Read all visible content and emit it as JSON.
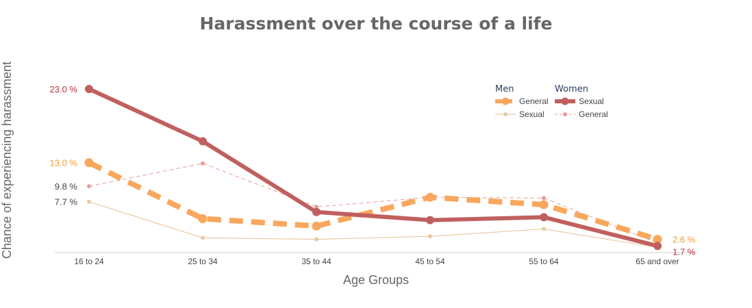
{
  "chart_data": {
    "type": "line",
    "title": "Harassment over the course of a life",
    "xlabel": "Age Groups",
    "ylabel": "Chance of experiencing harassment",
    "categories": [
      "16 to 24",
      "25 to 34",
      "35 to 44",
      "45 to 54",
      "55 to 64",
      "65 and over"
    ],
    "ylim": [
      0.8,
      25.0
    ],
    "grid": false,
    "legend_position": "top-right",
    "legend_groups": [
      "Men",
      "Women"
    ],
    "series": [
      {
        "name": "General",
        "group": "Men",
        "color": "#f9a75d",
        "style": "dashed-thick",
        "values": [
          13.0,
          5.4,
          4.4,
          8.3,
          7.3,
          2.6
        ]
      },
      {
        "name": "Sexual",
        "group": "Men",
        "color": "#e8c9a2",
        "style": "solid-thin",
        "values": [
          7.7,
          2.8,
          2.6,
          3.0,
          4.0,
          1.5
        ]
      },
      {
        "name": "Sexual",
        "group": "Women",
        "color": "#c0605e",
        "style": "solid-thick",
        "values": [
          23.0,
          15.9,
          6.3,
          5.2,
          5.6,
          1.7
        ]
      },
      {
        "name": "General",
        "group": "Women",
        "color": "#ec9a9a",
        "style": "dashed-thin",
        "values": [
          9.8,
          12.9,
          7.0,
          8.3,
          8.2,
          2.1
        ]
      }
    ],
    "annotations": [
      {
        "text": "23.0 %",
        "series": 2,
        "side": "left",
        "color": "#b5343c"
      },
      {
        "text": "13.0 %",
        "series": 0,
        "side": "left",
        "color": "#f39a37"
      },
      {
        "text": "9.8 %",
        "series": 3,
        "side": "left",
        "color": "#444444"
      },
      {
        "text": "7.7 %",
        "series": 1,
        "side": "left",
        "color": "#444444"
      },
      {
        "text": "2.6 %",
        "series": 0,
        "side": "right",
        "color": "#f39a37"
      },
      {
        "text": "1.7 %",
        "series": 2,
        "side": "right",
        "color": "#b5343c"
      }
    ]
  }
}
